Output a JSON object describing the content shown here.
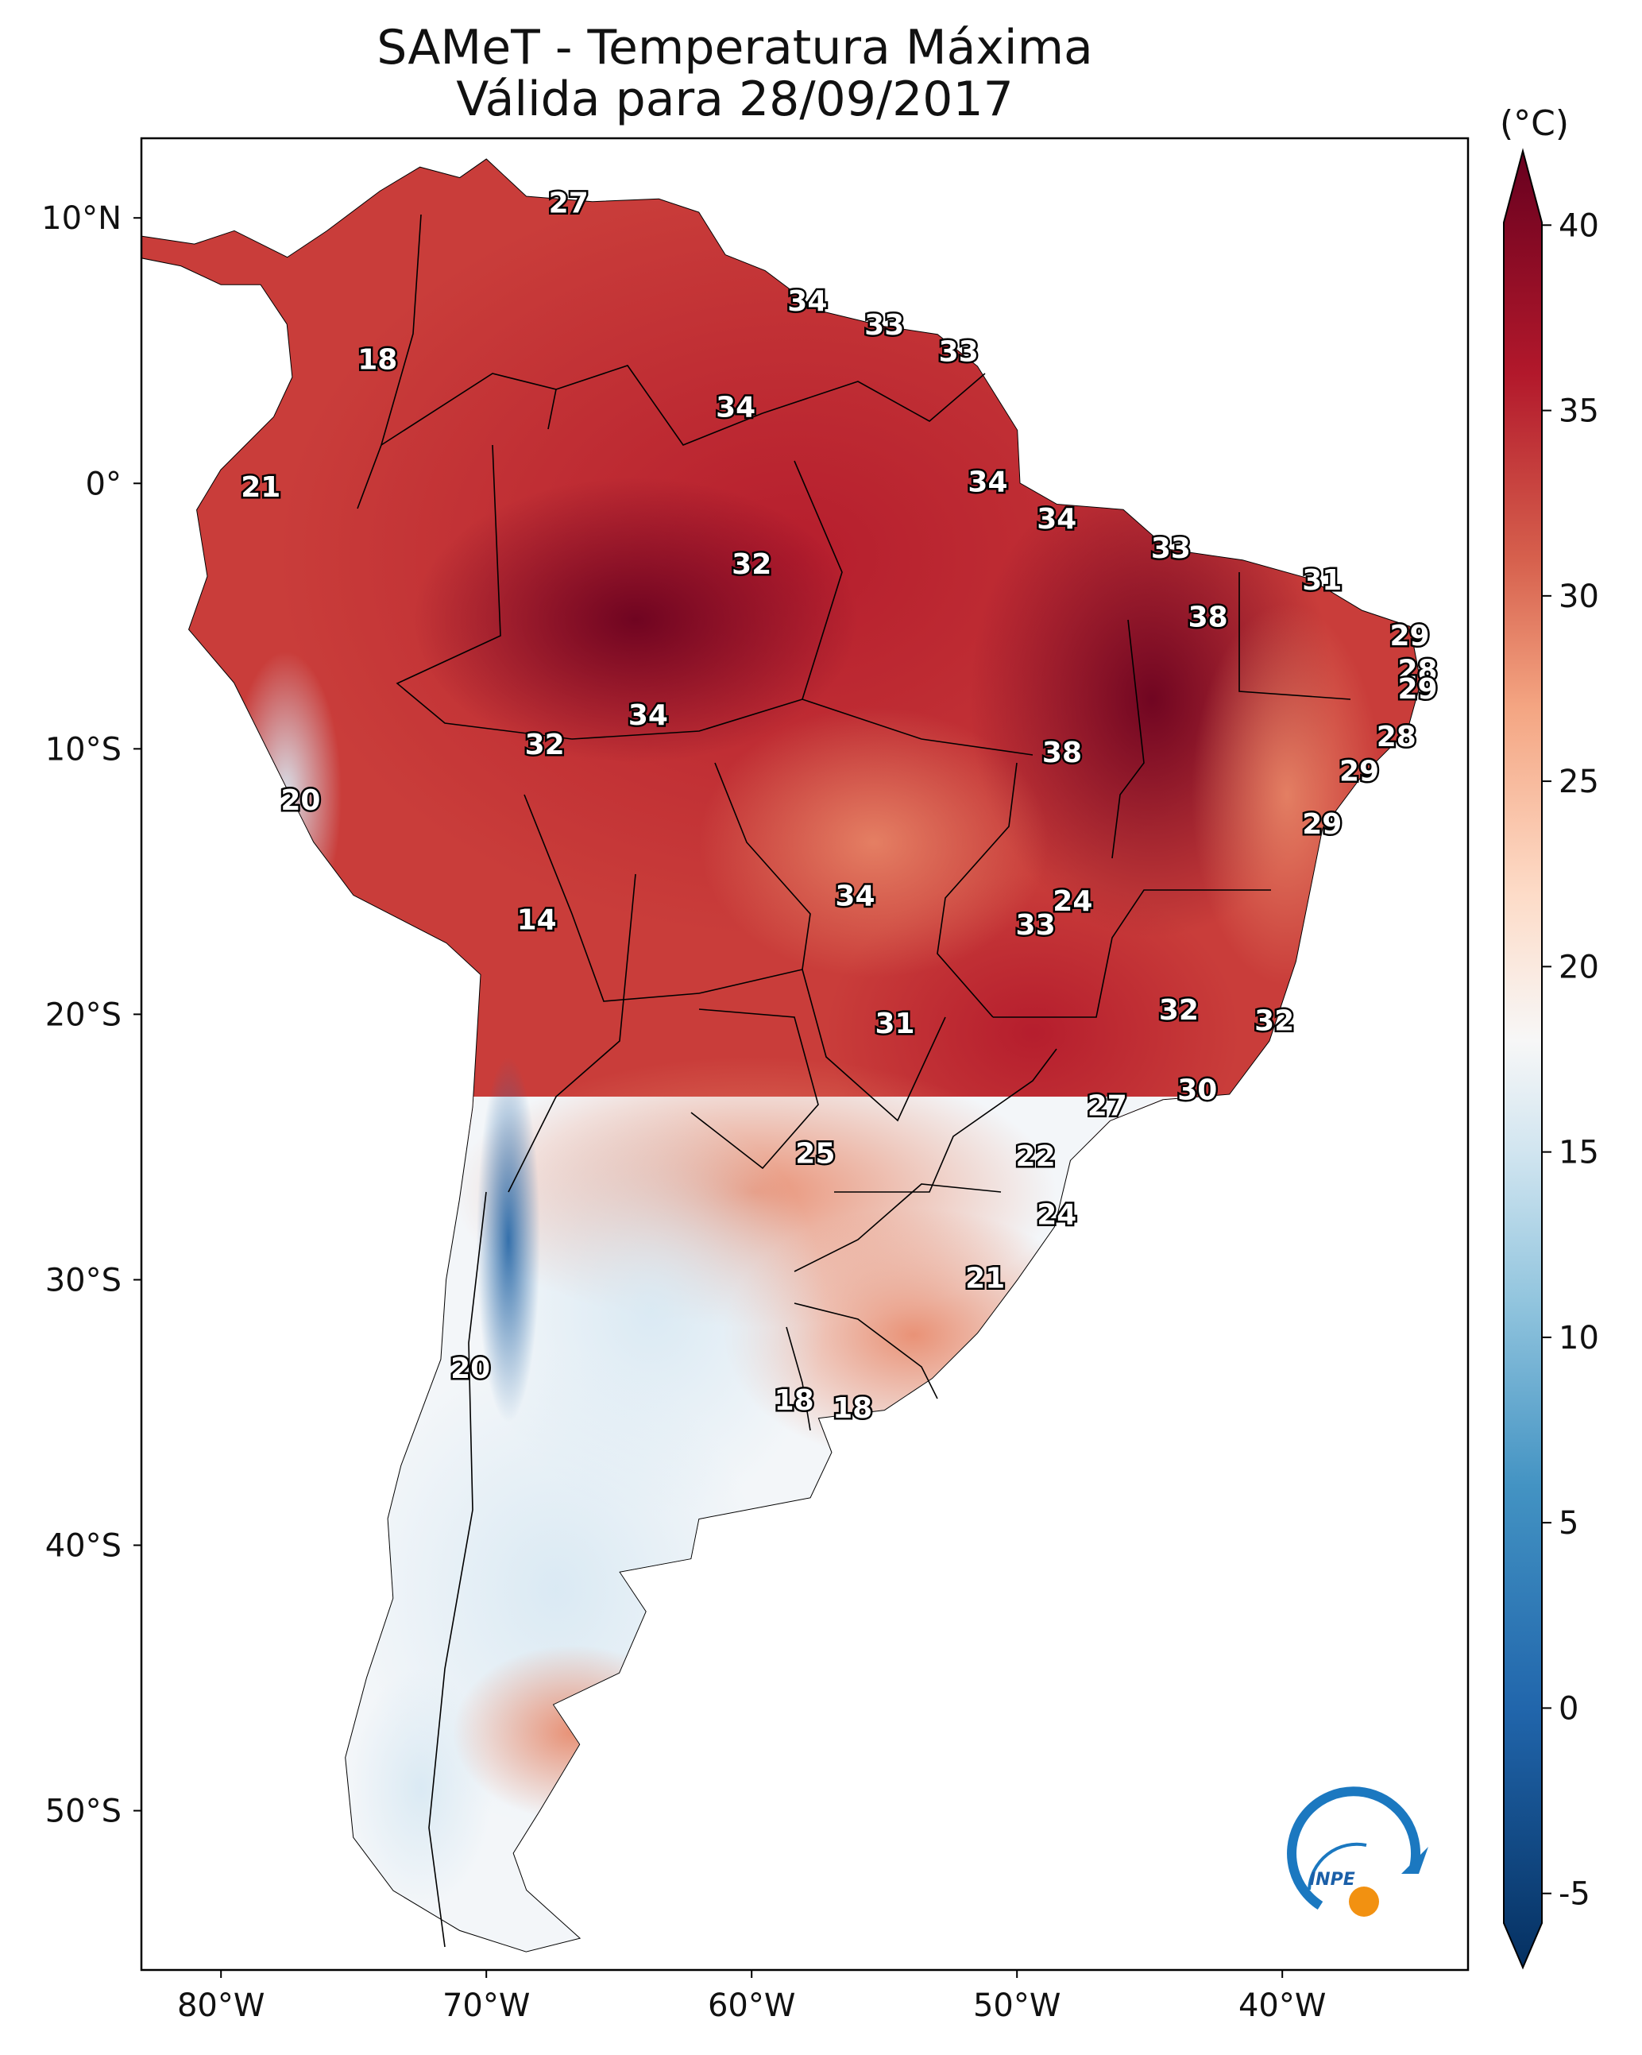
{
  "title": "SAMeT - Temperatura Máxima",
  "subtitle": "Válida para 28/09/2017",
  "colorbar": {
    "unit": "(°C)",
    "ticks": [
      "40",
      "35",
      "30",
      "25",
      "20",
      "15",
      "10",
      "5",
      "0",
      "-5"
    ],
    "min": -7,
    "max": 42,
    "stops": [
      {
        "v": -7,
        "c": "#053061"
      },
      {
        "v": 0,
        "c": "#2166ac"
      },
      {
        "v": 6,
        "c": "#4393c3"
      },
      {
        "v": 11,
        "c": "#92c5de"
      },
      {
        "v": 15,
        "c": "#d1e5f0"
      },
      {
        "v": 18,
        "c": "#f7f7f7"
      },
      {
        "v": 22,
        "c": "#fddbc7"
      },
      {
        "v": 27,
        "c": "#f4a582"
      },
      {
        "v": 31,
        "c": "#d6604d"
      },
      {
        "v": 36,
        "c": "#b2182b"
      },
      {
        "v": 42,
        "c": "#67001f"
      }
    ]
  },
  "axes": {
    "lon_labels": [
      "80°W",
      "70°W",
      "60°W",
      "50°W",
      "40°W"
    ],
    "lon_values": [
      -80,
      -70,
      -60,
      -50,
      -40
    ],
    "lat_labels": [
      "10°N",
      "0°",
      "10°S",
      "20°S",
      "30°S",
      "40°S",
      "50°S"
    ],
    "lat_values": [
      10,
      0,
      -10,
      -20,
      -30,
      -40,
      -50
    ],
    "lon_range": [
      -83,
      -33
    ],
    "lat_range": [
      -56,
      13
    ]
  },
  "stations": [
    {
      "label": "27",
      "lon": -66.9,
      "lat": 10.5
    },
    {
      "label": "34",
      "lon": -57.9,
      "lat": 6.8
    },
    {
      "label": "33",
      "lon": -55.0,
      "lat": 5.9
    },
    {
      "label": "33",
      "lon": -52.2,
      "lat": 4.9
    },
    {
      "label": "18",
      "lon": -74.1,
      "lat": 4.6
    },
    {
      "label": "34",
      "lon": -60.6,
      "lat": 2.8
    },
    {
      "label": "21",
      "lon": -78.5,
      "lat": -0.2
    },
    {
      "label": "34",
      "lon": -51.1,
      "lat": 0.0
    },
    {
      "label": "34",
      "lon": -48.5,
      "lat": -1.4
    },
    {
      "label": "32",
      "lon": -60.0,
      "lat": -3.1
    },
    {
      "label": "33",
      "lon": -44.2,
      "lat": -2.5
    },
    {
      "label": "31",
      "lon": -38.5,
      "lat": -3.7
    },
    {
      "label": "38",
      "lon": -42.8,
      "lat": -5.1
    },
    {
      "label": "29",
      "lon": -35.2,
      "lat": -5.8
    },
    {
      "label": "28",
      "lon": -34.9,
      "lat": -7.1
    },
    {
      "label": "29",
      "lon": -34.9,
      "lat": -7.8
    },
    {
      "label": "34",
      "lon": -63.9,
      "lat": -8.8
    },
    {
      "label": "32",
      "lon": -67.8,
      "lat": -9.9
    },
    {
      "label": "28",
      "lon": -35.7,
      "lat": -9.6
    },
    {
      "label": "38",
      "lon": -48.3,
      "lat": -10.2
    },
    {
      "label": "29",
      "lon": -37.1,
      "lat": -10.9
    },
    {
      "label": "20",
      "lon": -77.0,
      "lat": -12.0
    },
    {
      "label": "29",
      "lon": -38.5,
      "lat": -12.9
    },
    {
      "label": "34",
      "lon": -56.1,
      "lat": -15.6
    },
    {
      "label": "24",
      "lon": -47.9,
      "lat": -15.8
    },
    {
      "label": "14",
      "lon": -68.1,
      "lat": -16.5
    },
    {
      "label": "33",
      "lon": -49.3,
      "lat": -16.7
    },
    {
      "label": "32",
      "lon": -43.9,
      "lat": -19.9
    },
    {
      "label": "32",
      "lon": -40.3,
      "lat": -20.3
    },
    {
      "label": "31",
      "lon": -54.6,
      "lat": -20.4
    },
    {
      "label": "30",
      "lon": -43.2,
      "lat": -22.9
    },
    {
      "label": "27",
      "lon": -46.6,
      "lat": -23.5
    },
    {
      "label": "25",
      "lon": -57.6,
      "lat": -25.3
    },
    {
      "label": "22",
      "lon": -49.3,
      "lat": -25.4
    },
    {
      "label": "24",
      "lon": -48.5,
      "lat": -27.6
    },
    {
      "label": "21",
      "lon": -51.2,
      "lat": -30.0
    },
    {
      "label": "20",
      "lon": -70.6,
      "lat": -33.4
    },
    {
      "label": "18",
      "lon": -58.4,
      "lat": -34.6
    },
    {
      "label": "18",
      "lon": -56.2,
      "lat": -34.9
    }
  ],
  "logo": {
    "text": "INPE"
  }
}
